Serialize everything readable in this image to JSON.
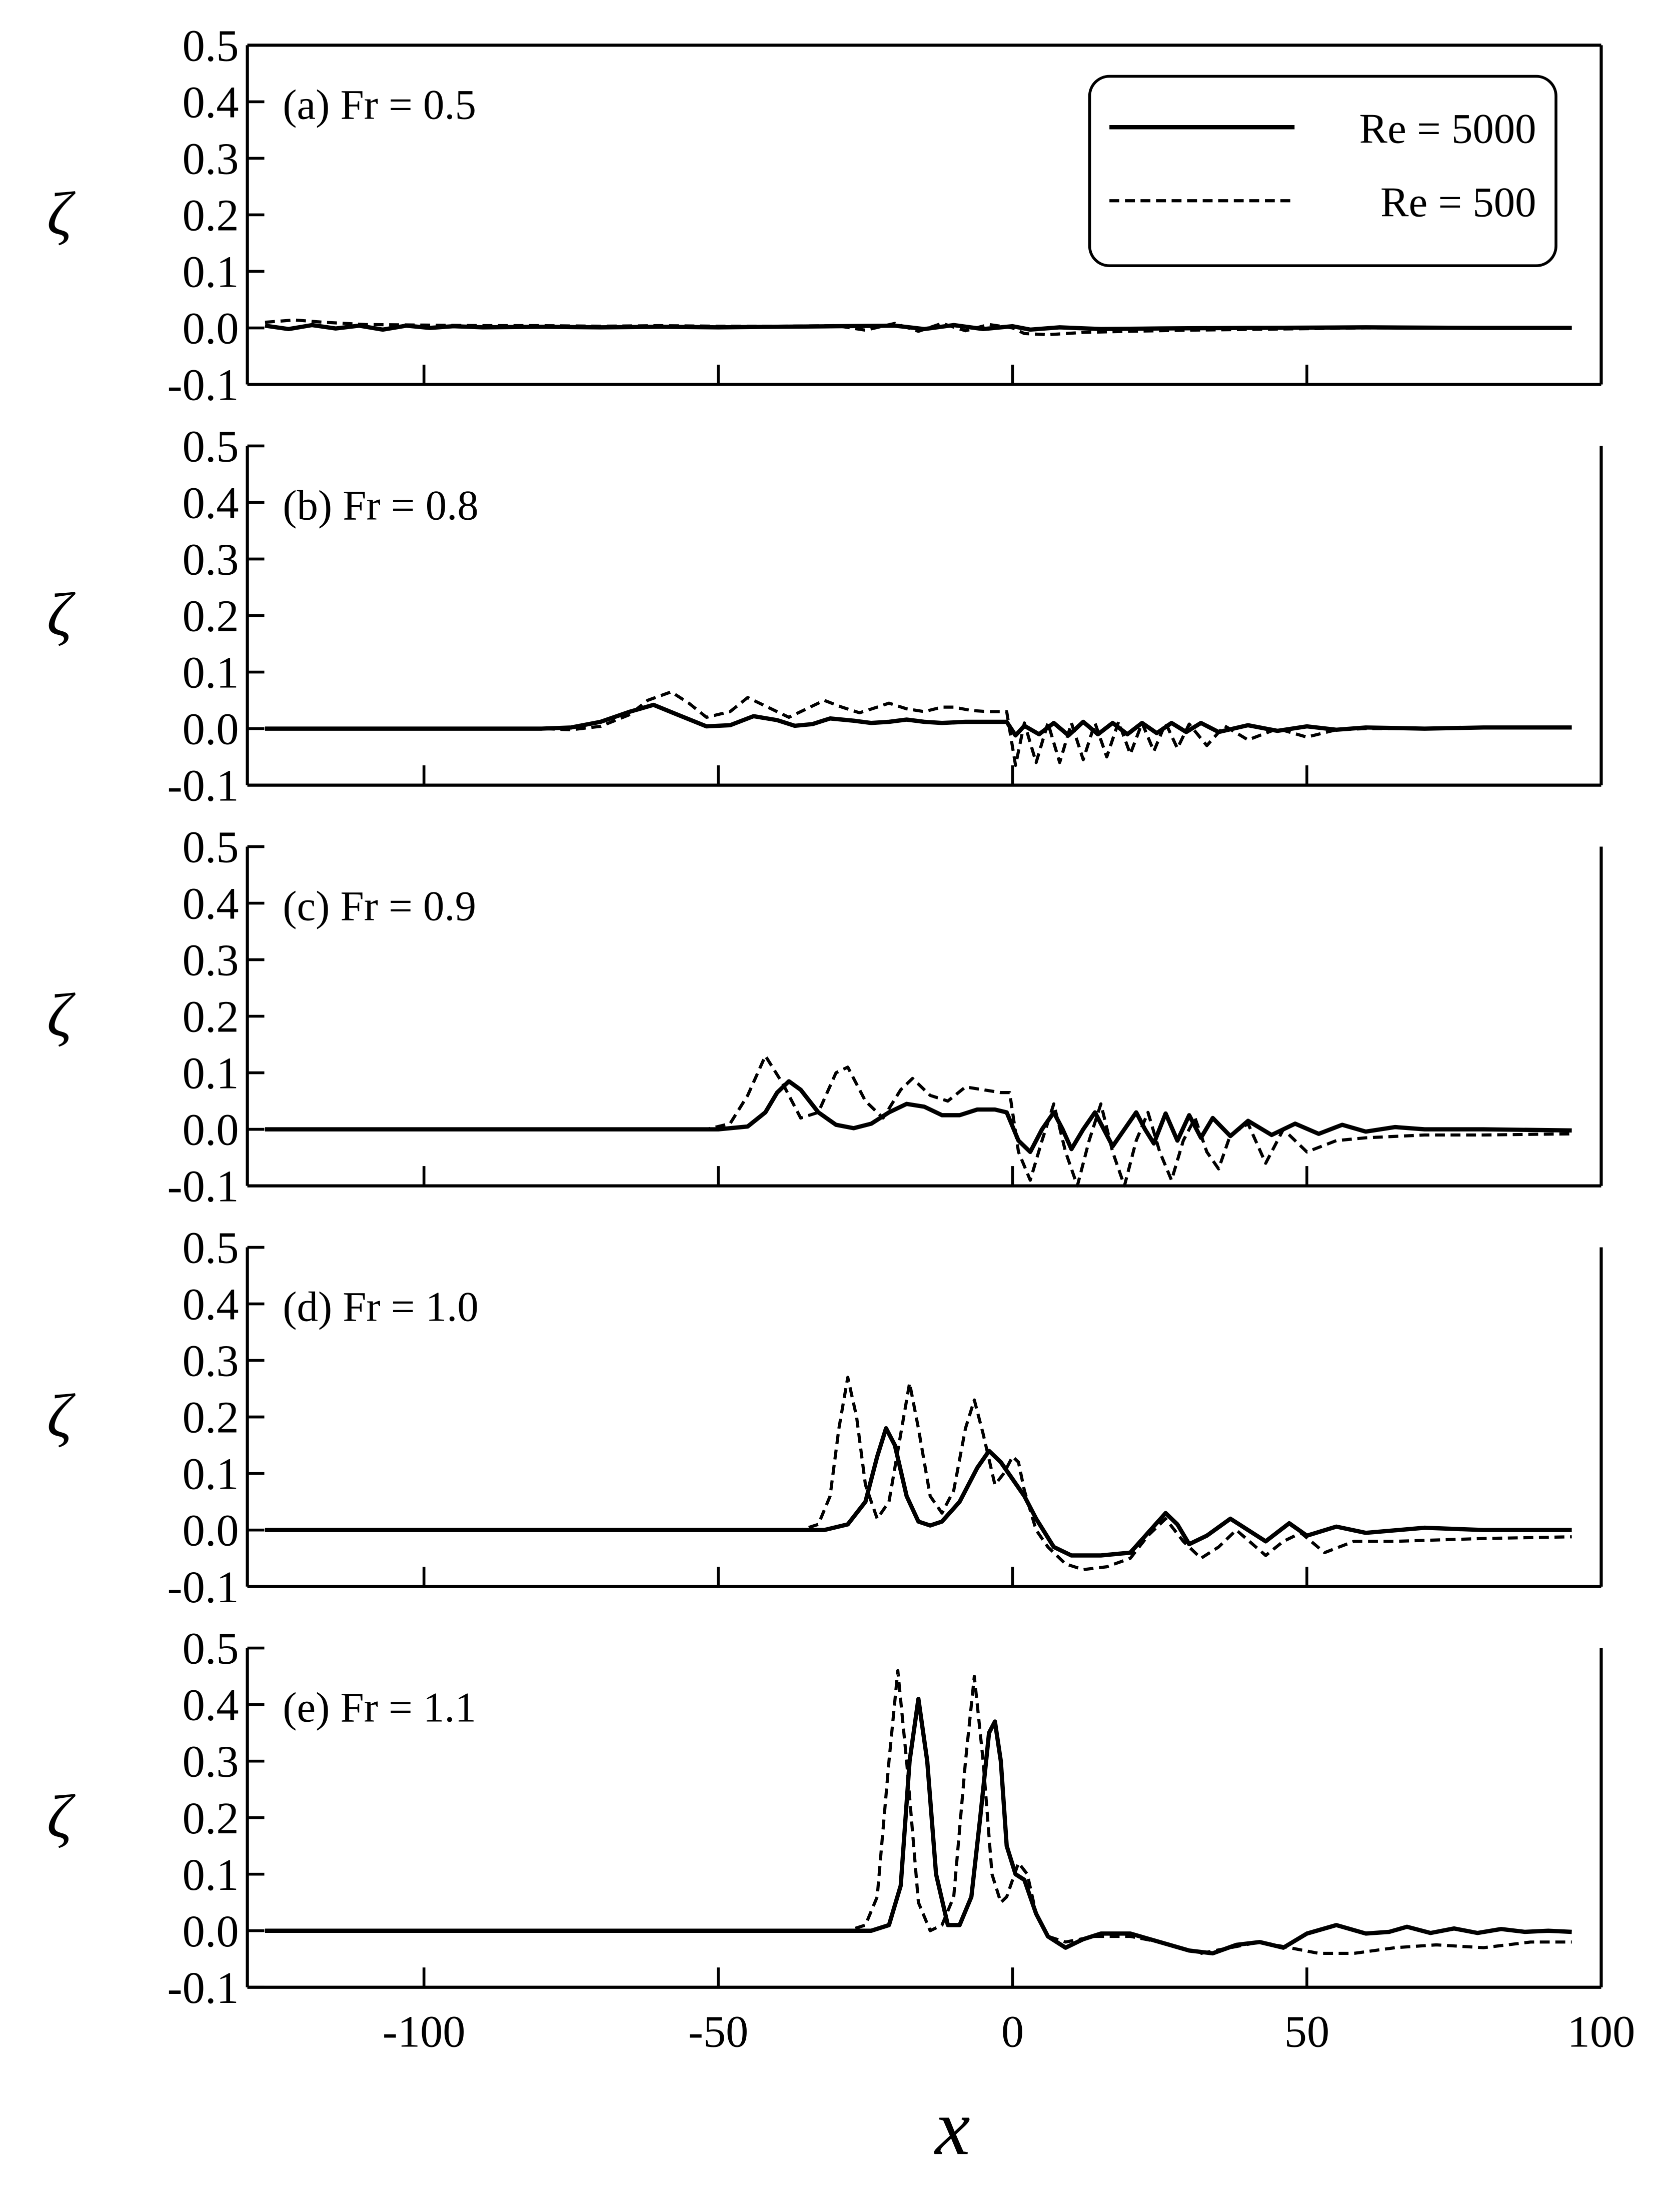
{
  "chart_data": [
    {
      "type": "line",
      "title": "(a) Fr = 0.5",
      "ylabel": "ζ",
      "xlim": [
        -130,
        100
      ],
      "ylim": [
        -0.1,
        0.5
      ],
      "yticks": [
        0.5,
        0.4,
        0.3,
        0.2,
        0.1,
        {
          "value": 0,
          "label": "0.0"
        },
        -0.1
      ],
      "xticks": [
        -100,
        -50,
        0,
        50,
        100
      ],
      "show_xtick_labels": false,
      "box": true,
      "legend": "upper right",
      "series": [
        {
          "name": "Re = 5000",
          "color": "#000000",
          "linestyle": "solid",
          "x": [
            -127,
            -123,
            -119,
            -115,
            -111,
            -107,
            -103,
            -99,
            -95,
            -90,
            -80,
            -70,
            -60,
            -50,
            -40,
            -30,
            -20,
            -15,
            -10,
            -5,
            0,
            3,
            8,
            15,
            25,
            40,
            60,
            80,
            95
          ],
          "values": [
            0.004,
            -0.002,
            0.005,
            -0.001,
            0.004,
            -0.003,
            0.004,
            0.0,
            0.003,
            0.001,
            0.002,
            0.001,
            0.002,
            0.001,
            0.002,
            0.003,
            0.004,
            -0.002,
            0.005,
            -0.002,
            0.003,
            -0.003,
            0.001,
            -0.002,
            -0.001,
            0.0,
            0.001,
            0.0,
            0.0
          ]
        },
        {
          "name": "Re = 500",
          "color": "#000000",
          "linestyle": "dashed",
          "x": [
            -127,
            -122,
            -117,
            -110,
            -100,
            -90,
            -80,
            -70,
            -60,
            -50,
            -40,
            -30,
            -25,
            -20,
            -16,
            -12,
            -8,
            -4,
            0,
            2,
            6,
            12,
            20,
            30,
            45,
            60,
            80,
            95
          ],
          "values": [
            0.01,
            0.014,
            0.01,
            0.006,
            0.005,
            0.004,
            0.004,
            0.003,
            0.004,
            0.003,
            0.003,
            0.004,
            -0.004,
            0.008,
            -0.006,
            0.008,
            -0.005,
            0.006,
            0.0,
            -0.01,
            -0.012,
            -0.008,
            -0.006,
            -0.004,
            -0.002,
            0.0,
            0.0,
            0.0
          ]
        }
      ]
    },
    {
      "type": "line",
      "title": "(b) Fr = 0.8",
      "ylabel": "ζ",
      "xlim": [
        -130,
        100
      ],
      "ylim": [
        -0.1,
        0.5
      ],
      "yticks": [
        0.5,
        0.4,
        0.3,
        0.2,
        0.1,
        {
          "value": 0,
          "label": "0.0"
        },
        -0.1
      ],
      "xticks": [
        -100,
        -50,
        0,
        50,
        100
      ],
      "show_xtick_labels": false,
      "box": false,
      "series": [
        {
          "color": "#000000",
          "linestyle": "solid",
          "x": [
            -127,
            -80,
            -75,
            -70,
            -65,
            -61,
            -57,
            -52,
            -48,
            -44,
            -40,
            -37,
            -34,
            -31,
            -27,
            -24,
            -21,
            -18,
            -15,
            -12,
            -8,
            -5,
            -1,
            0.5,
            2,
            4.5,
            7,
            9.5,
            12,
            14.5,
            17,
            19.5,
            22,
            24.5,
            27,
            29.5,
            32,
            35,
            40,
            45,
            50,
            55,
            60,
            70,
            80,
            95
          ],
          "values": [
            0,
            0,
            0.002,
            0.012,
            0.03,
            0.042,
            0.025,
            0.004,
            0.006,
            0.022,
            0.015,
            0.005,
            0.008,
            0.018,
            0.014,
            0.01,
            0.012,
            0.016,
            0.012,
            0.01,
            0.012,
            0.012,
            0.012,
            -0.012,
            0.005,
            -0.01,
            0.01,
            -0.012,
            0.012,
            -0.01,
            0.01,
            -0.01,
            0.01,
            -0.008,
            0.01,
            -0.006,
            0.01,
            -0.006,
            0.006,
            -0.004,
            0.004,
            -0.002,
            0.002,
            0.0,
            0.002,
            0.002
          ]
        },
        {
          "color": "#000000",
          "linestyle": "dashed",
          "x": [
            -127,
            -80,
            -75,
            -70,
            -65,
            -62,
            -58,
            -55,
            -52,
            -48,
            -45,
            -42,
            -38,
            -35,
            -32,
            -29,
            -26,
            -23,
            -21,
            -18,
            -15,
            -12,
            -10,
            -7,
            -4,
            -1,
            0.5,
            2,
            4,
            6,
            8,
            10,
            12,
            14,
            16,
            18,
            20,
            22,
            24,
            26,
            28,
            30,
            33,
            36,
            40,
            45,
            50,
            55,
            60,
            70,
            80,
            95
          ],
          "values": [
            0,
            0,
            -0.002,
            0.004,
            0.025,
            0.05,
            0.065,
            0.045,
            0.02,
            0.03,
            0.055,
            0.04,
            0.02,
            0.035,
            0.05,
            0.038,
            0.028,
            0.038,
            0.045,
            0.035,
            0.03,
            0.038,
            0.038,
            0.032,
            0.03,
            0.03,
            -0.065,
            0.01,
            -0.06,
            0.01,
            -0.06,
            0.01,
            -0.055,
            0.01,
            -0.05,
            0.012,
            -0.045,
            0.01,
            -0.04,
            0.01,
            -0.035,
            0.008,
            -0.03,
            0.005,
            -0.02,
            0.0,
            -0.015,
            -0.002,
            0.0,
            0.0,
            0.002,
            0.002
          ]
        }
      ]
    },
    {
      "type": "line",
      "title": "(c) Fr = 0.9",
      "ylabel": "ζ",
      "xlim": [
        -130,
        100
      ],
      "ylim": [
        -0.1,
        0.5
      ],
      "yticks": [
        0.5,
        0.4,
        0.3,
        0.2,
        0.1,
        {
          "value": 0,
          "label": "0.0"
        },
        -0.1
      ],
      "xticks": [
        -100,
        -50,
        0,
        50,
        100
      ],
      "show_xtick_labels": false,
      "box": false,
      "series": [
        {
          "color": "#000000",
          "linestyle": "solid",
          "x": [
            -127,
            -50,
            -45,
            -42,
            -40,
            -38,
            -36,
            -33,
            -30,
            -27,
            -24,
            -21,
            -18,
            -15,
            -12,
            -9,
            -6,
            -3,
            -1,
            1,
            3,
            5,
            7,
            8.5,
            10,
            12,
            14,
            15.5,
            17,
            19,
            21,
            22.5,
            24,
            26,
            28,
            30,
            32,
            34,
            37,
            40,
            44,
            48,
            52,
            56,
            60,
            65,
            70,
            80,
            95
          ],
          "values": [
            0,
            0,
            0.005,
            0.03,
            0.065,
            0.085,
            0.07,
            0.03,
            0.008,
            0.002,
            0.01,
            0.03,
            0.045,
            0.04,
            0.025,
            0.025,
            0.035,
            0.035,
            0.03,
            -0.02,
            -0.04,
            0.0,
            0.03,
            0.0,
            -0.035,
            0.0,
            0.03,
            0.0,
            -0.03,
            0.0,
            0.03,
            0.0,
            -0.025,
            0.028,
            -0.02,
            0.025,
            -0.015,
            0.02,
            -0.012,
            0.015,
            -0.01,
            0.01,
            -0.008,
            0.008,
            -0.004,
            0.004,
            0.0,
            0.0,
            -0.002
          ]
        },
        {
          "color": "#000000",
          "linestyle": "dashed",
          "x": [
            -127,
            -52,
            -48,
            -45,
            -42,
            -39,
            -36,
            -33,
            -30,
            -28,
            -25,
            -22,
            -19,
            -17,
            -14,
            -11,
            -8,
            -5,
            -2,
            -0.5,
            1,
            3,
            5,
            7,
            9,
            11,
            13,
            15,
            17,
            19,
            21,
            23,
            25,
            27,
            29,
            31,
            33,
            35,
            37,
            40,
            43,
            46,
            50,
            55,
            60,
            70,
            80,
            95
          ],
          "values": [
            0,
            0,
            0.01,
            0.06,
            0.13,
            0.08,
            0.02,
            0.03,
            0.1,
            0.11,
            0.05,
            0.02,
            0.07,
            0.09,
            0.06,
            0.05,
            0.075,
            0.07,
            0.065,
            0.065,
            -0.04,
            -0.09,
            -0.02,
            0.045,
            -0.04,
            -0.1,
            -0.02,
            0.045,
            -0.04,
            -0.1,
            -0.02,
            0.03,
            -0.04,
            -0.09,
            -0.02,
            0.02,
            -0.04,
            -0.07,
            -0.01,
            0.01,
            -0.06,
            0.0,
            -0.04,
            -0.02,
            -0.015,
            -0.01,
            -0.01,
            -0.008
          ]
        }
      ]
    },
    {
      "type": "line",
      "title": "(d) Fr = 1.0",
      "ylabel": "ζ",
      "xlim": [
        -130,
        100
      ],
      "ylim": [
        -0.1,
        0.5
      ],
      "yticks": [
        0.5,
        0.4,
        0.3,
        0.2,
        0.1,
        {
          "value": 0,
          "label": "0.0"
        },
        -0.1
      ],
      "xticks": [
        -100,
        -50,
        0,
        50,
        100
      ],
      "show_xtick_labels": false,
      "box": false,
      "series": [
        {
          "color": "#000000",
          "linestyle": "solid",
          "x": [
            -127,
            -32,
            -28,
            -25,
            -23,
            -21.5,
            -20,
            -18,
            -16,
            -14,
            -12,
            -9,
            -6,
            -4,
            -2,
            0,
            2,
            4,
            7,
            10,
            15,
            20,
            23,
            26,
            28,
            30,
            33,
            37,
            40,
            43,
            47,
            50,
            55,
            60,
            70,
            80,
            95
          ],
          "values": [
            0,
            0,
            0.01,
            0.05,
            0.13,
            0.18,
            0.15,
            0.06,
            0.015,
            0.008,
            0.015,
            0.05,
            0.11,
            0.14,
            0.12,
            0.09,
            0.06,
            0.02,
            -0.03,
            -0.045,
            -0.045,
            -0.04,
            -0.005,
            0.03,
            0.01,
            -0.025,
            -0.01,
            0.02,
            0.0,
            -0.02,
            0.012,
            -0.01,
            0.006,
            -0.005,
            0.004,
            0.0,
            0.0
          ]
        },
        {
          "color": "#000000",
          "linestyle": "dashed",
          "x": [
            -127,
            -36,
            -33,
            -31,
            -29.5,
            -28,
            -26.5,
            -25,
            -23,
            -21,
            -19,
            -17.5,
            -16,
            -14,
            -12,
            -10,
            -8,
            -6.5,
            -5,
            -3,
            -1.5,
            0,
            1,
            2,
            4,
            6,
            9,
            12,
            16,
            20,
            23,
            26,
            29,
            32,
            35,
            38,
            43,
            46,
            49,
            53,
            58,
            65,
            80,
            95
          ],
          "values": [
            0,
            0,
            0.01,
            0.06,
            0.18,
            0.27,
            0.2,
            0.08,
            0.02,
            0.05,
            0.17,
            0.26,
            0.18,
            0.06,
            0.03,
            0.07,
            0.18,
            0.23,
            0.17,
            0.08,
            0.1,
            0.13,
            0.12,
            0.07,
            0.0,
            -0.03,
            -0.06,
            -0.07,
            -0.065,
            -0.05,
            -0.01,
            0.02,
            -0.02,
            -0.05,
            -0.03,
            0.0,
            -0.045,
            -0.02,
            -0.005,
            -0.04,
            -0.02,
            -0.02,
            -0.015,
            -0.012
          ]
        }
      ]
    },
    {
      "type": "line",
      "title": "(e) Fr = 1.1",
      "ylabel": "ζ",
      "xlabel": "x",
      "xlim": [
        -130,
        100
      ],
      "ylim": [
        -0.1,
        0.5
      ],
      "yticks": [
        0.5,
        0.4,
        0.3,
        0.2,
        0.1,
        {
          "value": 0,
          "label": "0.0"
        },
        -0.1
      ],
      "xticks": [
        -100,
        -50,
        0,
        50,
        100
      ],
      "show_xtick_labels": true,
      "box": false,
      "series": [
        {
          "color": "#000000",
          "linestyle": "solid",
          "x": [
            -127,
            -24,
            -21,
            -19,
            -17.5,
            -16,
            -14.5,
            -13,
            -11,
            -9,
            -7,
            -5.5,
            -4,
            -3,
            -2,
            -1,
            0.5,
            2,
            4,
            6,
            9,
            12,
            15,
            20,
            25,
            30,
            34,
            38,
            42,
            46,
            50,
            55,
            60,
            64,
            67,
            71,
            75,
            79,
            83,
            87,
            91,
            95
          ],
          "values": [
            0,
            0,
            0.01,
            0.08,
            0.3,
            0.41,
            0.3,
            0.1,
            0.01,
            0.01,
            0.06,
            0.2,
            0.35,
            0.37,
            0.3,
            0.15,
            0.1,
            0.09,
            0.03,
            -0.01,
            -0.03,
            -0.015,
            -0.005,
            -0.005,
            -0.02,
            -0.035,
            -0.04,
            -0.025,
            -0.02,
            -0.03,
            -0.005,
            0.01,
            -0.005,
            -0.002,
            0.007,
            -0.004,
            0.004,
            -0.004,
            0.003,
            -0.002,
            0.0,
            -0.002
          ]
        },
        {
          "color": "#000000",
          "linestyle": "dashed",
          "x": [
            -127,
            -28,
            -25,
            -23,
            -21,
            -19.5,
            -18,
            -16,
            -14,
            -12,
            -10,
            -8,
            -6.5,
            -5,
            -3.5,
            -2,
            -1,
            1,
            2.5,
            4,
            6,
            9,
            14,
            20,
            25,
            32,
            37,
            42,
            47,
            52,
            58,
            65,
            72,
            80,
            88,
            95
          ],
          "values": [
            0,
            0,
            0.01,
            0.06,
            0.3,
            0.46,
            0.3,
            0.05,
            0.0,
            0.01,
            0.06,
            0.3,
            0.45,
            0.3,
            0.1,
            0.05,
            0.06,
            0.12,
            0.1,
            0.03,
            -0.01,
            -0.02,
            -0.01,
            -0.01,
            -0.02,
            -0.04,
            -0.03,
            -0.02,
            -0.03,
            -0.04,
            -0.04,
            -0.03,
            -0.025,
            -0.03,
            -0.02,
            -0.02
          ]
        }
      ]
    }
  ]
}
